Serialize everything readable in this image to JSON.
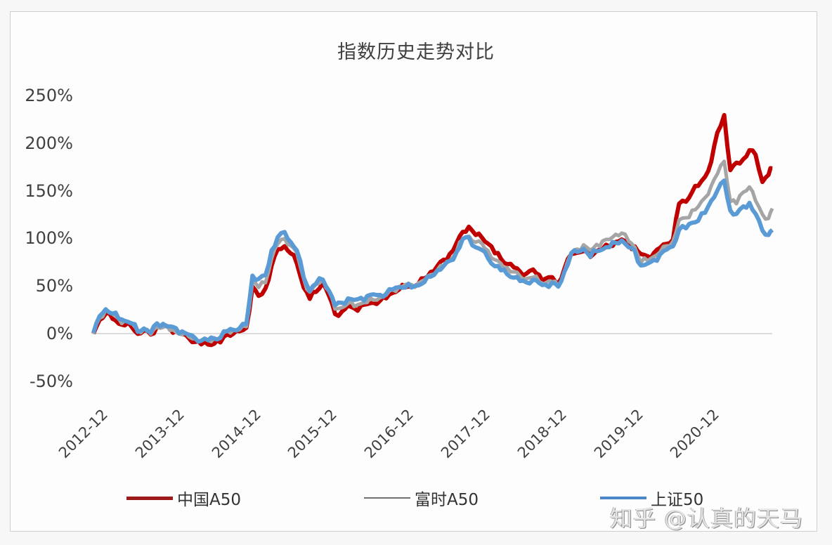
{
  "title": "指数历史走势对比",
  "watermark": "知乎 @认真的天马",
  "colors": {
    "china_a50": "#c00000",
    "ftse_a50": "#a5a5a5",
    "sse50": "#5b9bd5",
    "zero_line": "#d0d0d0",
    "legend_china_a50": "#9c1a1a",
    "legend_ftse_a50": "#707070",
    "legend_sse50": "#4a86c8"
  },
  "y_axis": {
    "ticks": [
      "250%",
      "200%",
      "150%",
      "100%",
      "50%",
      "0%",
      "-50%"
    ],
    "tick_values": [
      250,
      200,
      150,
      100,
      50,
      0,
      -50
    ]
  },
  "x_axis": {
    "ticks": [
      "2012-12",
      "2013-12",
      "2014-12",
      "2015-12",
      "2016-12",
      "2017-12",
      "2018-12",
      "2019-12",
      "2020-12"
    ]
  },
  "legend": [
    {
      "label": "中国A50",
      "key": "china_a50"
    },
    {
      "label": "富时A50",
      "key": "ftse_a50"
    },
    {
      "label": "上证50",
      "key": "sse50"
    }
  ],
  "chart_data": {
    "type": "line",
    "title": "指数历史走势对比",
    "xlabel": "",
    "ylabel": "",
    "ylim": [
      -50,
      250
    ],
    "y_ticks": [
      "-50%",
      "0%",
      "50%",
      "100%",
      "150%",
      "200%",
      "250%"
    ],
    "x_ticks": [
      "2012-12",
      "2013-12",
      "2014-12",
      "2015-12",
      "2016-12",
      "2017-12",
      "2018-12",
      "2019-12",
      "2020-12"
    ],
    "grid": false,
    "legend_position": "bottom",
    "x": [
      2012.92,
      2013.0,
      2013.08,
      2013.17,
      2013.25,
      2013.33,
      2013.42,
      2013.5,
      2013.58,
      2013.67,
      2013.75,
      2013.83,
      2013.92,
      2014.0,
      2014.08,
      2014.17,
      2014.25,
      2014.33,
      2014.42,
      2014.5,
      2014.58,
      2014.67,
      2014.75,
      2014.83,
      2014.92,
      2015.0,
      2015.08,
      2015.17,
      2015.25,
      2015.33,
      2015.42,
      2015.5,
      2015.58,
      2015.67,
      2015.75,
      2015.83,
      2015.92,
      2016.0,
      2016.08,
      2016.17,
      2016.25,
      2016.33,
      2016.42,
      2016.5,
      2016.58,
      2016.67,
      2016.75,
      2016.83,
      2016.92,
      2017.0,
      2017.08,
      2017.17,
      2017.25,
      2017.33,
      2017.42,
      2017.5,
      2017.58,
      2017.67,
      2017.75,
      2017.83,
      2017.92,
      2018.0,
      2018.08,
      2018.17,
      2018.25,
      2018.33,
      2018.42,
      2018.5,
      2018.58,
      2018.67,
      2018.75,
      2018.83,
      2018.92,
      2019.0,
      2019.08,
      2019.17,
      2019.25,
      2019.33,
      2019.42,
      2019.5,
      2019.58,
      2019.67,
      2019.75,
      2019.83,
      2019.92,
      2020.0,
      2020.08,
      2020.17,
      2020.25,
      2020.33,
      2020.42,
      2020.5,
      2020.58,
      2020.67,
      2020.75,
      2020.83,
      2020.92,
      2021.0,
      2021.08,
      2021.17,
      2021.25,
      2021.33,
      2021.42,
      2021.5,
      2021.58,
      2021.67,
      2021.75,
      2021.8
    ],
    "series": [
      {
        "name": "中国A50",
        "values": [
          0,
          15,
          22,
          17,
          12,
          10,
          8,
          0,
          3,
          -2,
          6,
          8,
          4,
          2,
          -1,
          -5,
          -8,
          -10,
          -10,
          -9,
          -8,
          0,
          0,
          2,
          5,
          48,
          38,
          46,
          70,
          88,
          92,
          85,
          75,
          50,
          38,
          45,
          54,
          40,
          20,
          22,
          28,
          25,
          28,
          30,
          32,
          35,
          38,
          44,
          48,
          50,
          50,
          53,
          58,
          64,
          70,
          76,
          82,
          94,
          106,
          112,
          104,
          102,
          96,
          86,
          80,
          74,
          70,
          65,
          62,
          66,
          60,
          56,
          58,
          52,
          68,
          84,
          86,
          88,
          82,
          88,
          90,
          92,
          96,
          98,
          92,
          90,
          82,
          80,
          84,
          90,
          95,
          100,
          138,
          140,
          150,
          156,
          165,
          180,
          210,
          228,
          170,
          178,
          182,
          192,
          188,
          160,
          168,
          175
        ]
      },
      {
        "name": "富时A50",
        "values": [
          0,
          16,
          24,
          19,
          14,
          12,
          10,
          2,
          5,
          0,
          8,
          8,
          5,
          3,
          0,
          -3,
          -6,
          -8,
          -8,
          -6,
          -5,
          2,
          3,
          4,
          8,
          55,
          50,
          55,
          80,
          95,
          100,
          92,
          84,
          56,
          42,
          50,
          56,
          44,
          26,
          28,
          33,
          30,
          33,
          34,
          36,
          38,
          40,
          45,
          48,
          50,
          50,
          52,
          56,
          62,
          68,
          72,
          78,
          88,
          100,
          103,
          96,
          94,
          86,
          76,
          72,
          68,
          64,
          60,
          58,
          60,
          56,
          54,
          56,
          50,
          66,
          85,
          88,
          92,
          86,
          92,
          96,
          98,
          104,
          106,
          98,
          92,
          76,
          78,
          82,
          86,
          92,
          96,
          118,
          120,
          128,
          132,
          142,
          155,
          168,
          182,
          140,
          138,
          150,
          155,
          140,
          125,
          120,
          130
        ]
      },
      {
        "name": "上证50",
        "values": [
          0,
          18,
          26,
          22,
          17,
          15,
          12,
          3,
          6,
          1,
          10,
          9,
          6,
          4,
          1,
          -2,
          -5,
          -7,
          -6,
          -4,
          -3,
          4,
          5,
          6,
          10,
          60,
          56,
          60,
          86,
          100,
          106,
          96,
          88,
          60,
          46,
          54,
          58,
          46,
          30,
          32,
          36,
          34,
          36,
          38,
          40,
          40,
          42,
          47,
          50,
          50,
          50,
          52,
          55,
          60,
          66,
          70,
          75,
          84,
          98,
          100,
          90,
          88,
          80,
          72,
          68,
          64,
          60,
          56,
          54,
          56,
          52,
          50,
          52,
          48,
          64,
          84,
          86,
          90,
          82,
          88,
          90,
          92,
          96,
          98,
          90,
          86,
          70,
          72,
          76,
          82,
          88,
          92,
          110,
          112,
          118,
          120,
          128,
          140,
          150,
          160,
          128,
          124,
          132,
          136,
          125,
          108,
          104,
          110
        ]
      }
    ]
  }
}
